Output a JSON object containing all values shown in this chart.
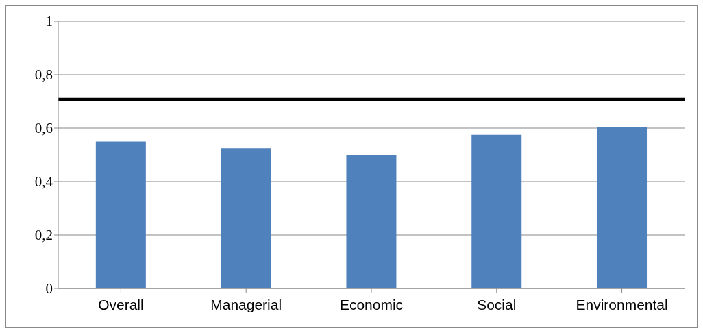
{
  "chart_data": {
    "type": "bar",
    "categories": [
      "Overall",
      "Managerial",
      "Economic",
      "Social",
      "Environmental"
    ],
    "values": [
      0.55,
      0.525,
      0.5,
      0.575,
      0.605
    ],
    "color": "#4f81bd",
    "ylim": [
      0,
      1
    ],
    "yticks": [
      0,
      {
        "value": 0.2,
        "label": "0,2"
      },
      {
        "value": 0.4,
        "label": "0,4"
      },
      {
        "value": 0.6,
        "label": "0,6"
      },
      {
        "value": 0.8,
        "label": "0,8"
      },
      1
    ],
    "grid": "y",
    "ref_lines": [
      {
        "axis": "y",
        "value": 0.707,
        "color": "#000000"
      }
    ]
  }
}
